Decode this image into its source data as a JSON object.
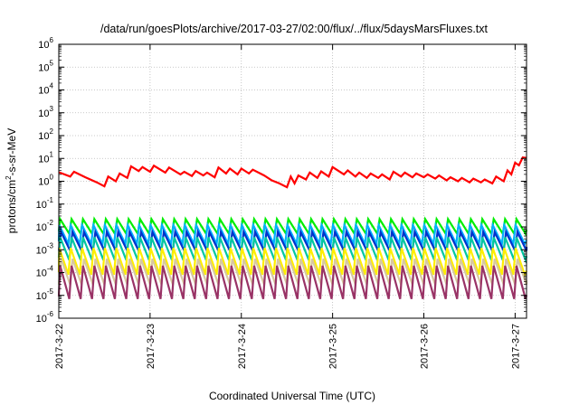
{
  "chart_data": {
    "type": "line",
    "title": "/data/run/goesPlots/archive/2017-03-27/02:00/flux/../flux/5daysMarsFluxes.txt",
    "xlabel": "Coordinated Universal Time (UTC)",
    "ylabel": {
      "base": "protons/cm",
      "sup": "2",
      "rest": "-s-sr-MeV"
    },
    "y_scale": "log",
    "ylim_exponents": [
      -6,
      6
    ],
    "ytick_labels": [
      {
        "base": "10",
        "exp": "-6"
      },
      {
        "base": "10",
        "exp": "-5"
      },
      {
        "base": "10",
        "exp": "-4"
      },
      {
        "base": "10",
        "exp": "-3"
      },
      {
        "base": "10",
        "exp": "-2"
      },
      {
        "base": "10",
        "exp": "-1"
      },
      {
        "base": "10",
        "exp": "0"
      },
      {
        "base": "10",
        "exp": "1"
      },
      {
        "base": "10",
        "exp": "2"
      },
      {
        "base": "10",
        "exp": "3"
      },
      {
        "base": "10",
        "exp": "4"
      },
      {
        "base": "10",
        "exp": "5"
      },
      {
        "base": "10",
        "exp": "6"
      }
    ],
    "xlim": [
      "2017-03-22",
      "2017-03-27 03:00"
    ],
    "xtick_labels": [
      "2017-3-22",
      "2017-3-23",
      "2017-3-24",
      "2017-3-25",
      "2017-3-26",
      "2017-3-27"
    ],
    "grid": true,
    "legend": "none",
    "sawtooth_period_hours": 3,
    "series": [
      {
        "color": "#ff0000",
        "points": [
          [
            "2017-03-22 00:00",
            2.5
          ],
          [
            "2017-03-22 03:00",
            1.6
          ],
          [
            "2017-03-22 04:00",
            2.6
          ],
          [
            "2017-03-22 07:00",
            1.5
          ],
          [
            "2017-03-22 10:00",
            0.9
          ],
          [
            "2017-03-22 12:00",
            0.6
          ],
          [
            "2017-03-22 13:00",
            1.6
          ],
          [
            "2017-03-22 15:00",
            1.0
          ],
          [
            "2017-03-22 16:00",
            2.2
          ],
          [
            "2017-03-22 18:00",
            1.4
          ],
          [
            "2017-03-22 19:00",
            4.5
          ],
          [
            "2017-03-22 21:00",
            2.8
          ],
          [
            "2017-03-22 22:00",
            4.2
          ],
          [
            "2017-03-23 00:00",
            2.6
          ],
          [
            "2017-03-23 01:00",
            4.8
          ],
          [
            "2017-03-23 04:00",
            2.4
          ],
          [
            "2017-03-23 05:00",
            4.0
          ],
          [
            "2017-03-23 08:00",
            2.0
          ],
          [
            "2017-03-23 09:00",
            2.6
          ],
          [
            "2017-03-23 11:00",
            1.7
          ],
          [
            "2017-03-23 12:00",
            2.8
          ],
          [
            "2017-03-23 14:00",
            1.8
          ],
          [
            "2017-03-23 15:00",
            2.4
          ],
          [
            "2017-03-23 17:00",
            1.5
          ],
          [
            "2017-03-23 18:00",
            4.0
          ],
          [
            "2017-03-23 20:00",
            2.2
          ],
          [
            "2017-03-23 21:00",
            3.6
          ],
          [
            "2017-03-23 23:00",
            2.0
          ],
          [
            "2017-03-24 00:00",
            3.6
          ],
          [
            "2017-03-24 02:00",
            2.2
          ],
          [
            "2017-03-24 03:00",
            3.2
          ],
          [
            "2017-03-24 06:00",
            1.8
          ],
          [
            "2017-03-24 08:00",
            1.1
          ],
          [
            "2017-03-24 10:00",
            0.8
          ],
          [
            "2017-03-24 12:00",
            0.55
          ],
          [
            "2017-03-24 13:00",
            1.6
          ],
          [
            "2017-03-24 14:00",
            0.8
          ],
          [
            "2017-03-24 15:00",
            1.8
          ],
          [
            "2017-03-24 17:00",
            1.2
          ],
          [
            "2017-03-24 18:00",
            2.4
          ],
          [
            "2017-03-24 20:00",
            1.4
          ],
          [
            "2017-03-24 21:00",
            2.7
          ],
          [
            "2017-03-24 23:00",
            1.6
          ],
          [
            "2017-03-25 00:00",
            4.2
          ],
          [
            "2017-03-25 03:00",
            2.0
          ],
          [
            "2017-03-25 04:00",
            3.0
          ],
          [
            "2017-03-25 06:00",
            1.6
          ],
          [
            "2017-03-25 07:00",
            2.4
          ],
          [
            "2017-03-25 09:00",
            1.4
          ],
          [
            "2017-03-25 10:00",
            2.2
          ],
          [
            "2017-03-25 12:00",
            1.4
          ],
          [
            "2017-03-25 13:00",
            2.0
          ],
          [
            "2017-03-25 15:00",
            1.2
          ],
          [
            "2017-03-25 16:00",
            2.6
          ],
          [
            "2017-03-25 18:00",
            1.6
          ],
          [
            "2017-03-25 19:00",
            2.4
          ],
          [
            "2017-03-25 21:00",
            1.5
          ],
          [
            "2017-03-25 22:00",
            2.2
          ],
          [
            "2017-03-26 00:00",
            1.5
          ],
          [
            "2017-03-26 01:00",
            2.0
          ],
          [
            "2017-03-26 03:00",
            1.3
          ],
          [
            "2017-03-26 04:00",
            1.8
          ],
          [
            "2017-03-26 06:00",
            1.1
          ],
          [
            "2017-03-26 07:00",
            1.5
          ],
          [
            "2017-03-26 09:00",
            1.0
          ],
          [
            "2017-03-26 10:00",
            1.4
          ],
          [
            "2017-03-26 12:00",
            0.9
          ],
          [
            "2017-03-26 13:00",
            1.3
          ],
          [
            "2017-03-26 15:00",
            0.9
          ],
          [
            "2017-03-26 16:00",
            1.2
          ],
          [
            "2017-03-26 18:00",
            0.8
          ],
          [
            "2017-03-26 19:00",
            1.6
          ],
          [
            "2017-03-26 21:00",
            1.0
          ],
          [
            "2017-03-26 22:00",
            3.0
          ],
          [
            "2017-03-26 23:00",
            2.0
          ],
          [
            "2017-03-27 00:00",
            6.5
          ],
          [
            "2017-03-27 01:00",
            5.0
          ],
          [
            "2017-03-27 02:00",
            11.0
          ],
          [
            "2017-03-27 03:00",
            10.5
          ]
        ]
      },
      {
        "color": "#00ee00",
        "base": 0.005,
        "peak": 0.022
      },
      {
        "color": "#00b0ff",
        "base": 0.0018,
        "peak": 0.012
      },
      {
        "color": "#0033cc",
        "base": 0.0009,
        "peak": 0.006
      },
      {
        "color": "#00c8a0",
        "base": 0.00035,
        "peak": 0.0035
      },
      {
        "color": "#ffee00",
        "base": 8e-05,
        "peak": 0.0012
      },
      {
        "color": "#d8c8a0",
        "base": 3e-05,
        "peak": 0.0004
      },
      {
        "color": "#993366",
        "base": 7e-06,
        "peak": 0.0002
      }
    ]
  }
}
